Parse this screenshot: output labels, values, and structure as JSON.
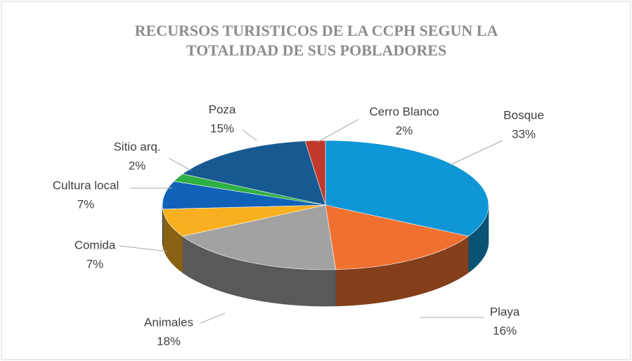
{
  "chart_data": {
    "type": "pie3d",
    "title": "RECURSOS TURISTICOS DE LA CCPH SEGUN LA TOTALIDAD DE SUS POBLADORES",
    "categories": [
      "Bosque",
      "Playa",
      "Animales",
      "Comida",
      "Cultura local",
      "Sitio arq.",
      "Poza",
      "Cerro Blanco"
    ],
    "values": [
      33,
      16,
      18,
      7,
      7,
      2,
      15,
      2
    ],
    "value_labels": [
      "33%",
      "16%",
      "18%",
      "7%",
      "7%",
      "2%",
      "15%",
      "2%"
    ],
    "colors": [
      "#0e96d6",
      "#f07030",
      "#a2a2a2",
      "#f8b020",
      "#1062b8",
      "#2fb044",
      "#175a91",
      "#c0392b"
    ]
  }
}
